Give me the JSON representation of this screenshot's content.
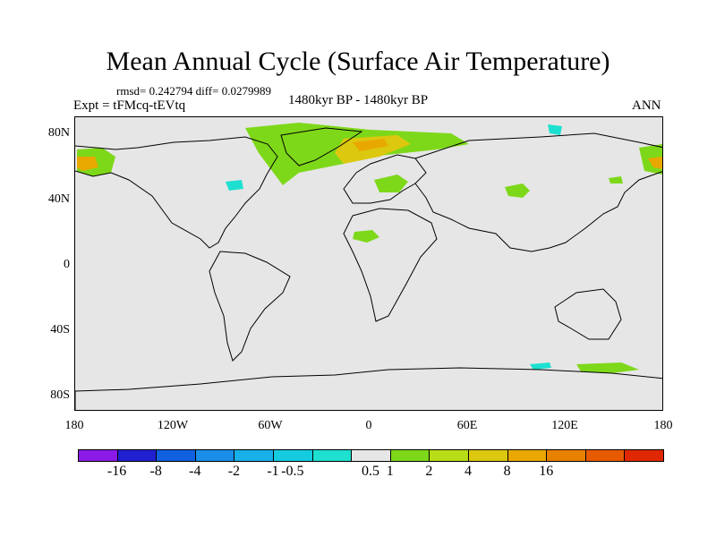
{
  "title": "Mean Annual Cycle (Surface Air Temperature)",
  "stats": "rmsd= 0.242794 diff= 0.0279989",
  "experiment": "Expt = tFMcq-tEVtq",
  "period": "1480kyr BP - 1480kyr BP",
  "season": "ANN",
  "lat_labels": [
    "80N",
    "40N",
    "0",
    "40S",
    "80S"
  ],
  "lon_labels": [
    "180",
    "120W",
    "60W",
    "0",
    "60E",
    "120E",
    "180"
  ],
  "colorbar": {
    "colors": [
      "#8b1ae6",
      "#2020d0",
      "#1060e0",
      "#1a8ee8",
      "#18b0e8",
      "#15cbe0",
      "#1ee0d0",
      "#e6e6e6",
      "#7ed81a",
      "#b8dc16",
      "#dcc80e",
      "#e8a800",
      "#e88000",
      "#e85a00",
      "#e02800"
    ],
    "labels": [
      "-16",
      "-8",
      "-4",
      "-2",
      "-1",
      "-0.5",
      "0.5",
      "1",
      "2",
      "4",
      "8",
      "16"
    ]
  },
  "colors": {
    "background": "#e6e6e6",
    "positive_small": "#7ed81a",
    "positive_mid": "#dcc80e",
    "positive_high": "#e8a800",
    "negative_small": "#1ee0d0"
  }
}
